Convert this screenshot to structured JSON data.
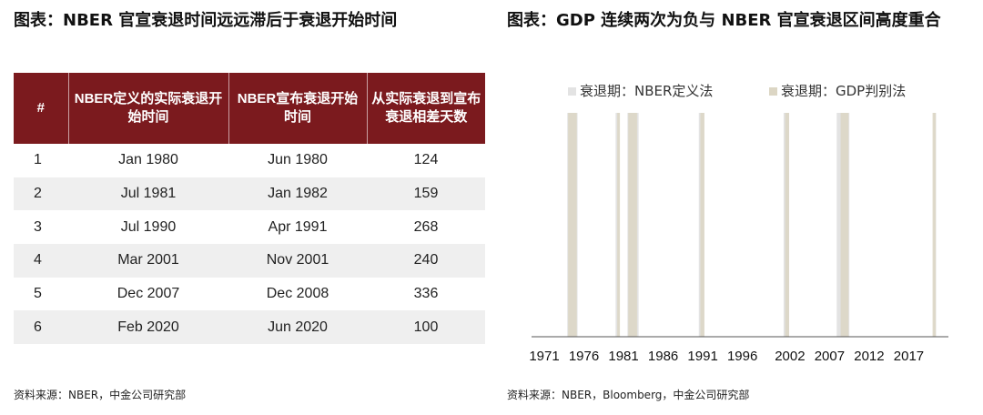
{
  "left": {
    "title": "图表：NBER 官宣衰退时间远远滞后于衰退开始时间",
    "table": {
      "headers": [
        "#",
        "NBER定义的实际衰退开始时间",
        "NBER宣布衰退开始时间",
        "从实际衰退到宣布衰退相差天数"
      ],
      "rows": [
        [
          "1",
          "Jan 1980",
          "Jun 1980",
          "124"
        ],
        [
          "2",
          "Jul 1981",
          "Jan 1982",
          "159"
        ],
        [
          "3",
          "Jul 1990",
          "Apr 1991",
          "268"
        ],
        [
          "4",
          "Mar 2001",
          "Nov 2001",
          "240"
        ],
        [
          "5",
          "Dec 2007",
          "Dec 2008",
          "336"
        ],
        [
          "6",
          "Feb 2020",
          "Jun 2020",
          "100"
        ]
      ]
    },
    "source": "资料来源：NBER，中金公司研究部"
  },
  "right": {
    "title": "图表：GDP 连续两次为负与 NBER 官宣衰退区间高度重合",
    "source": "资料来源：NBER，Bloomberg，中金公司研究部"
  },
  "colors": {
    "header_bg": "#7b1a1e",
    "nber_bar": "#e3e3e3",
    "gdp_bar": "#dcd6c4",
    "axis": "#555555"
  },
  "chart_data": {
    "type": "bar",
    "xlim": [
      1971,
      2022
    ],
    "x_ticks": [
      "1971",
      "1976",
      "1981",
      "1986",
      "1991",
      "1996",
      "2002",
      "2007",
      "2012",
      "2017"
    ],
    "series": [
      {
        "name": "衰退期：NBER定义法",
        "color": "#e3e3e3",
        "intervals": [
          [
            1973.9,
            1975.2
          ],
          [
            1980.0,
            1980.5
          ],
          [
            1981.5,
            1982.9
          ],
          [
            1990.5,
            1991.2
          ],
          [
            2001.2,
            2001.9
          ],
          [
            2007.9,
            2009.5
          ],
          [
            2020.1,
            2020.3
          ]
        ]
      },
      {
        "name": "衰退期：GDP判别法",
        "color": "#dcd6c4",
        "intervals": [
          [
            1974.0,
            1975.1
          ],
          [
            1980.2,
            1980.5
          ],
          [
            1981.6,
            1982.7
          ],
          [
            1990.7,
            1991.2
          ],
          [
            2001.4,
            2001.9
          ],
          [
            2008.4,
            2009.4
          ],
          [
            2020.0,
            2020.4
          ]
        ]
      }
    ]
  }
}
